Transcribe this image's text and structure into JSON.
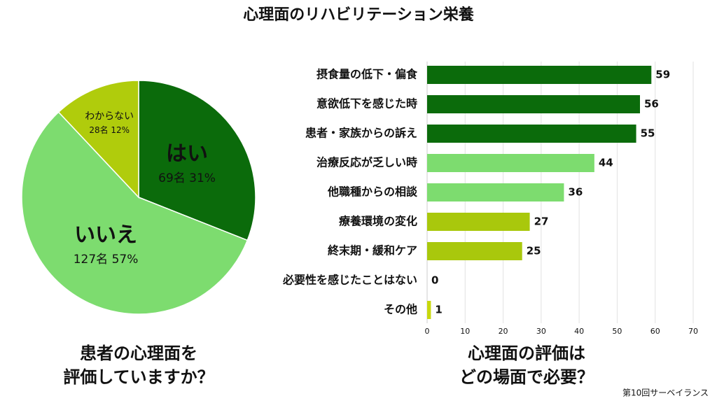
{
  "title": "心理面のリハビリテーション栄養",
  "source": "第10回サーベイランス",
  "chart_data": [
    {
      "type": "pie",
      "title": [
        "患者の心理面を",
        "評価していますか？"
      ],
      "categories": [
        "はい",
        "いいえ",
        "わからない"
      ],
      "values": [
        31,
        57,
        12
      ],
      "value_labels": [
        "69名 31%",
        "127名 57%",
        "28名 12%"
      ],
      "colors": [
        "#0b6b0b",
        "#7ddc6f",
        "#b0cc0c"
      ]
    },
    {
      "type": "bar",
      "orientation": "horizontal",
      "title": [
        "心理面の評価は",
        "どの場面で必要？"
      ],
      "categories": [
        "摂食量の低下・偏食",
        "意欲低下を感じた時",
        "患者・家族からの訴え",
        "治療反応が乏しい時",
        "他職種からの相談",
        "療養環境の変化",
        "終末期・緩和ケア",
        "必要性を感じたことはない",
        "その他"
      ],
      "values": [
        59,
        56,
        55,
        44,
        36,
        27,
        25,
        0,
        1
      ],
      "colors": [
        "#0b6b0b",
        "#0b6b0b",
        "#0b6b0b",
        "#7ddc6f",
        "#7ddc6f",
        "#a9c80c",
        "#a9c80c",
        "#a9c80c",
        "#c8d80c"
      ],
      "xlim": [
        0,
        70
      ],
      "xticks": [
        0,
        10,
        20,
        30,
        40,
        50,
        60,
        70
      ],
      "grid": true
    }
  ]
}
